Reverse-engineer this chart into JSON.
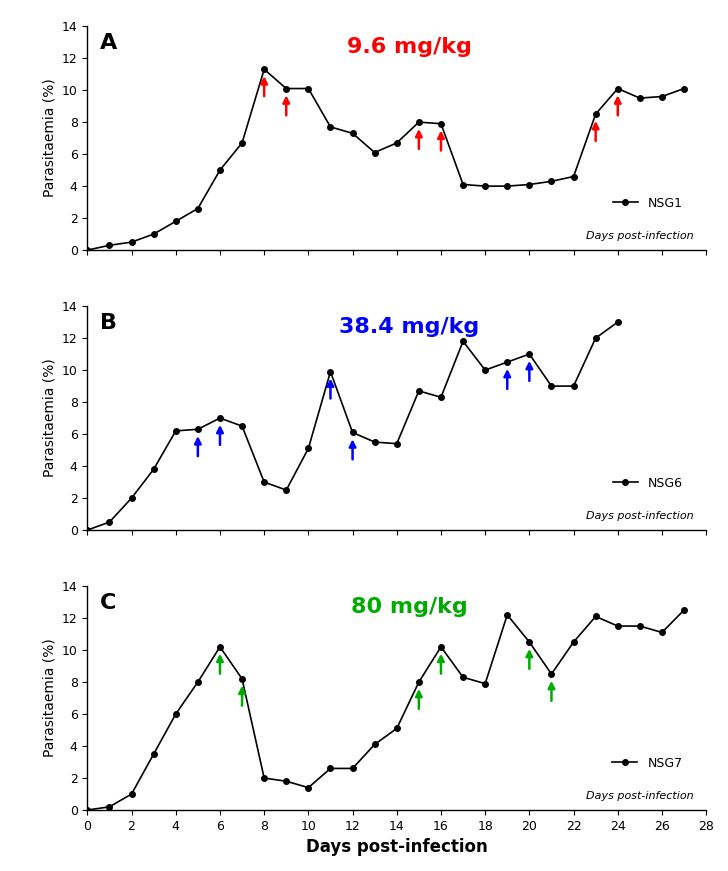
{
  "panel_A": {
    "label": "A",
    "title": "9.6 mg/kg",
    "title_color": "#ff0000",
    "legend_label": "NSG1",
    "x": [
      0,
      1,
      2,
      3,
      4,
      5,
      6,
      7,
      8,
      9,
      10,
      11,
      12,
      13,
      14,
      15,
      16,
      17,
      18,
      19,
      20,
      21,
      22,
      23,
      24,
      25,
      26,
      27
    ],
    "y": [
      0,
      0.3,
      0.5,
      1.0,
      1.8,
      2.6,
      5.0,
      6.7,
      11.3,
      10.1,
      10.1,
      7.7,
      7.3,
      6.1,
      6.7,
      8.0,
      7.9,
      4.1,
      4.0,
      4.0,
      4.1,
      4.3,
      4.6,
      8.5,
      10.1,
      9.5,
      9.6,
      10.1
    ],
    "arrows": [
      {
        "x": 8,
        "color": "#ff0000"
      },
      {
        "x": 9,
        "color": "#ff0000"
      },
      {
        "x": 15,
        "color": "#ff0000"
      },
      {
        "x": 16,
        "color": "#ff0000"
      },
      {
        "x": 23,
        "color": "#ff0000"
      },
      {
        "x": 24,
        "color": "#ff0000"
      }
    ]
  },
  "panel_B": {
    "label": "B",
    "title": "38.4 mg/kg",
    "title_color": "#0000ff",
    "legend_label": "NSG6",
    "x": [
      0,
      1,
      2,
      3,
      4,
      5,
      6,
      7,
      8,
      9,
      10,
      11,
      12,
      13,
      14,
      15,
      16,
      17,
      18,
      19,
      20,
      21,
      22,
      23,
      24
    ],
    "y": [
      0,
      0.5,
      2.0,
      3.8,
      6.2,
      6.3,
      7.0,
      6.5,
      3.0,
      2.5,
      5.1,
      9.9,
      6.1,
      5.5,
      5.4,
      8.7,
      8.3,
      11.8,
      10.0,
      10.5,
      11.0,
      9.0,
      9.0,
      12.0,
      13.0
    ],
    "arrows": [
      {
        "x": 5,
        "color": "#0000ff"
      },
      {
        "x": 6,
        "color": "#0000ff"
      },
      {
        "x": 11,
        "color": "#0000ff"
      },
      {
        "x": 12,
        "color": "#0000ff"
      },
      {
        "x": 19,
        "color": "#0000ff"
      },
      {
        "x": 20,
        "color": "#0000ff"
      }
    ]
  },
  "panel_C": {
    "label": "C",
    "title": "80 mg/kg",
    "title_color": "#00aa00",
    "legend_label": "NSG7",
    "x": [
      0,
      1,
      2,
      3,
      4,
      5,
      6,
      7,
      8,
      9,
      10,
      11,
      12,
      13,
      14,
      15,
      16,
      17,
      18,
      19,
      20,
      21,
      22,
      23,
      24,
      25,
      26,
      27
    ],
    "y": [
      0,
      0.2,
      1.0,
      3.5,
      6.0,
      8.0,
      10.2,
      8.2,
      2.0,
      1.8,
      1.4,
      2.6,
      2.6,
      4.1,
      5.1,
      8.0,
      10.2,
      8.3,
      7.9,
      12.2,
      10.5,
      8.5,
      10.5,
      12.1,
      11.5,
      11.5,
      11.1,
      12.5
    ],
    "arrows": [
      {
        "x": 6,
        "color": "#00aa00"
      },
      {
        "x": 7,
        "color": "#00aa00"
      },
      {
        "x": 15,
        "color": "#00aa00"
      },
      {
        "x": 16,
        "color": "#00aa00"
      },
      {
        "x": 20,
        "color": "#00aa00"
      },
      {
        "x": 21,
        "color": "#00aa00"
      }
    ]
  },
  "ylim": [
    0,
    14
  ],
  "xlim": [
    0,
    28
  ],
  "yticks": [
    0,
    2,
    4,
    6,
    8,
    10,
    12,
    14
  ],
  "xticks": [
    0,
    2,
    4,
    6,
    8,
    10,
    12,
    14,
    16,
    18,
    20,
    22,
    24,
    26,
    28
  ],
  "ylabel": "Parasitaemia (%)",
  "xlabel": "Days post-infection",
  "dpi": 100
}
